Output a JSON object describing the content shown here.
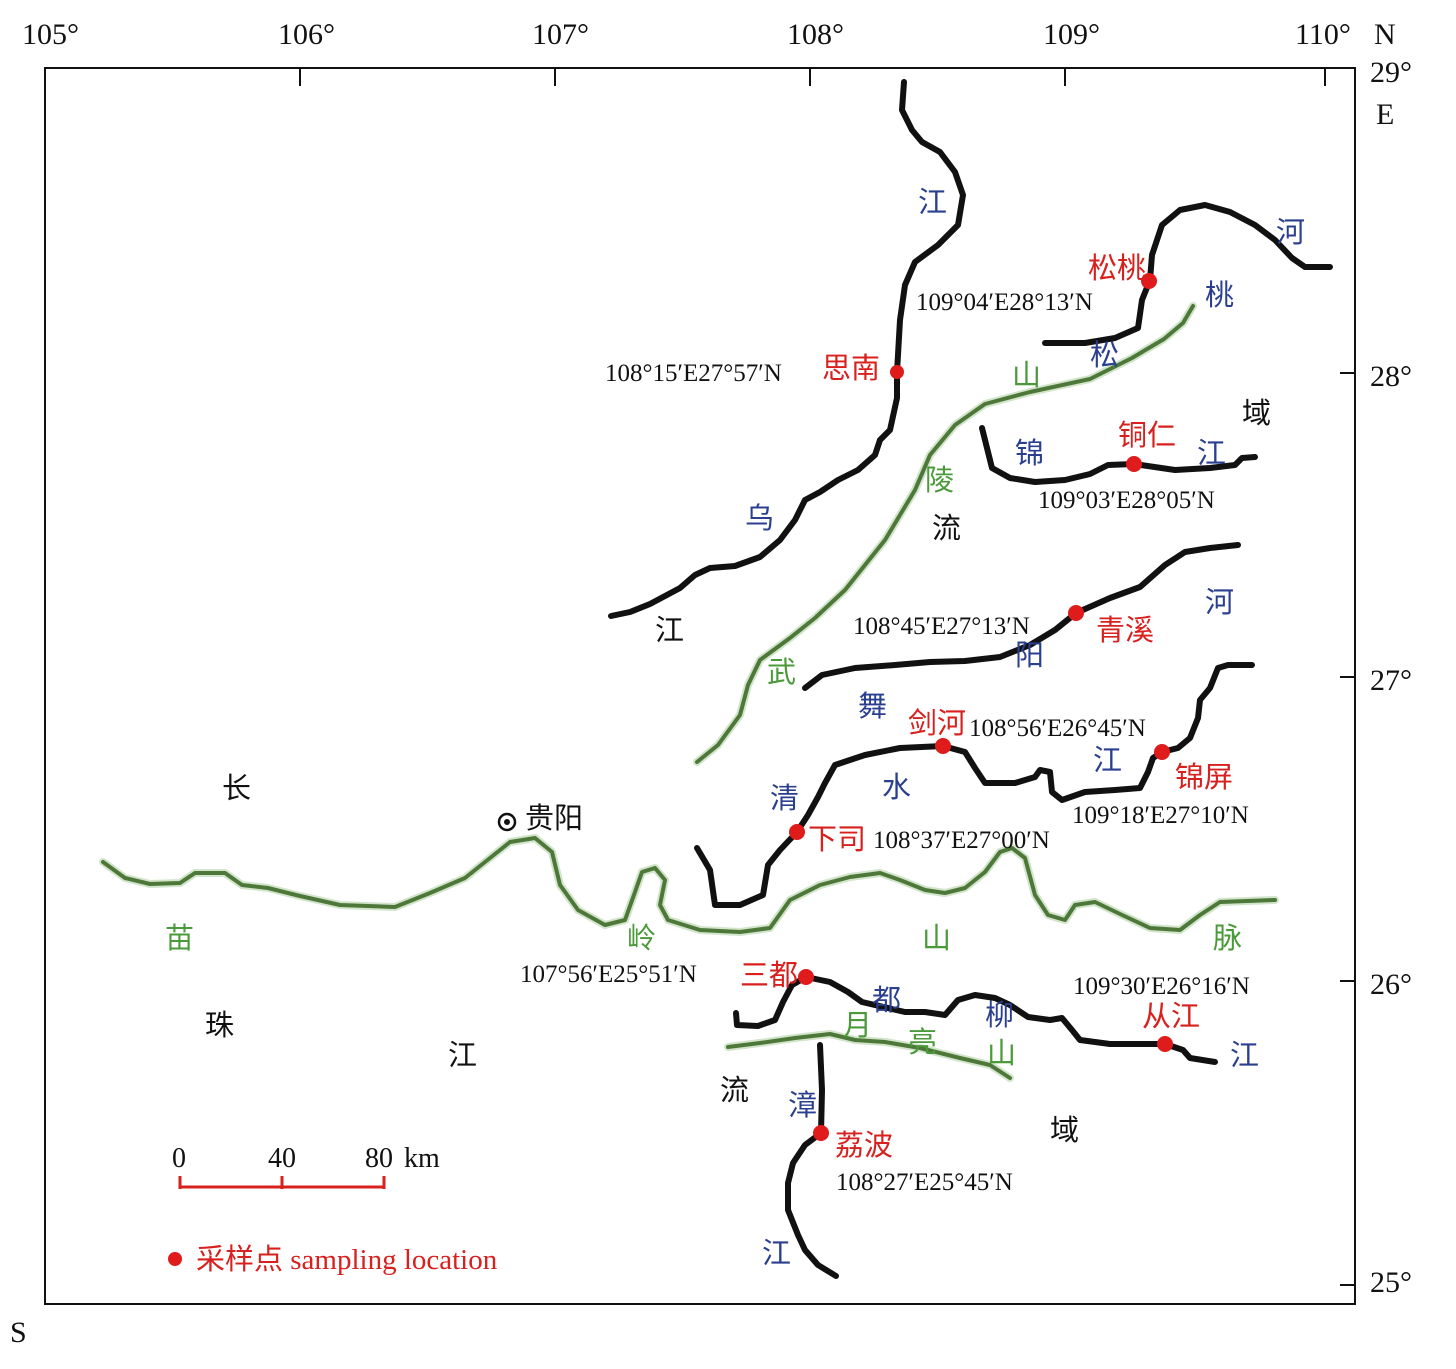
{
  "axes": {
    "lon_ticks": [
      "105°",
      "106°",
      "107°",
      "108°",
      "109°",
      "110°"
    ],
    "lat_ticks": [
      "29°",
      "28°",
      "27°",
      "26°",
      "25°"
    ],
    "north": "N",
    "east": "E",
    "south": "S"
  },
  "sites": [
    {
      "name": "松桃",
      "coord": "109°04′E28°13′N"
    },
    {
      "name": "思南",
      "coord": "108°15′E27°57′N"
    },
    {
      "name": "铜仁",
      "coord": "109°03′E28°05′N"
    },
    {
      "name": "青溪",
      "coord": "108°45′E27°13′N"
    },
    {
      "name": "剑河",
      "coord": "108°56′E26°45′N"
    },
    {
      "name": "锦屏",
      "coord": "109°18′E27°10′N"
    },
    {
      "name": "下司",
      "coord": "108°37′E27°00′N"
    },
    {
      "name": "三都",
      "coord": "107°56′E25°51′N"
    },
    {
      "name": "从江",
      "coord": "109°30′E26°16′N"
    },
    {
      "name": "荔波",
      "coord": "108°27′E25°45′N"
    }
  ],
  "city": {
    "name": "贵阳"
  },
  "river_labels": [
    "江",
    "乌",
    "江",
    "桃",
    "河",
    "松",
    "锦",
    "江",
    "河",
    "阳",
    "舞",
    "江",
    "清",
    "水",
    "都",
    "柳",
    "江",
    "漳",
    "江"
  ],
  "mountain_labels": [
    "山",
    "陵",
    "武",
    "苗",
    "岭",
    "山",
    "脉",
    "月",
    "亮",
    "山"
  ],
  "region_labels": [
    "域",
    "流",
    "长",
    "珠",
    "江",
    "流",
    "域"
  ],
  "scale": {
    "ticks": [
      "0",
      "40",
      "80"
    ],
    "unit": "km"
  },
  "legend": {
    "marker_label": "采样点 sampling location"
  },
  "colors": {
    "river": "#111111",
    "mountain": "#3e6b2a",
    "site": "#e01b1b",
    "site_text": "#d8201e",
    "river_text": "#2b3f8f",
    "mountain_text": "#4a9a3a"
  }
}
